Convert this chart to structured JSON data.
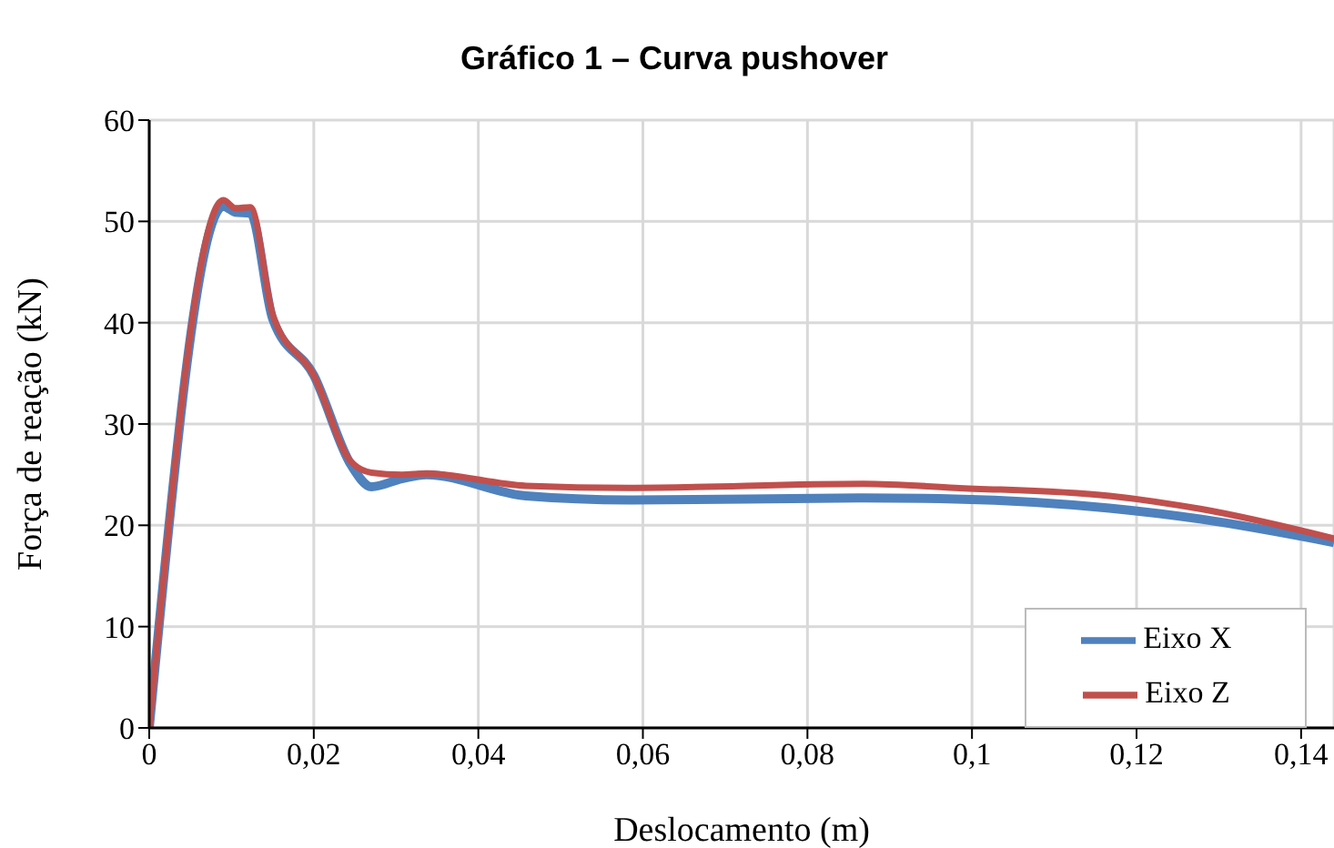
{
  "chart_data": {
    "type": "line",
    "title": "Gráfico 1 – Curva pushover",
    "xlabel": "Deslocamento (m)",
    "ylabel": "Força de reação (kN)",
    "xlim": [
      0,
      0.144
    ],
    "xticks": [
      {
        "value": 0,
        "label": "0"
      },
      {
        "value": 0.02,
        "label": "0,02"
      },
      {
        "value": 0.04,
        "label": "0,04"
      },
      {
        "value": 0.06,
        "label": "0,06"
      },
      {
        "value": 0.08,
        "label": "0,08"
      },
      {
        "value": 0.1,
        "label": "0,1"
      },
      {
        "value": 0.12,
        "label": "0,12"
      },
      {
        "value": 0.14,
        "label": "0,14"
      }
    ],
    "ylim": [
      0,
      60
    ],
    "yticks": [
      0,
      10,
      20,
      30,
      40,
      50,
      60
    ],
    "grid": true,
    "legend": "bottom right",
    "marker": "none",
    "line_style": "solid",
    "series": [
      {
        "name": "Eixo X",
        "color": "#4f81bd",
        "x": [
          0,
          0.009,
          0.0105,
          0.0123,
          0.015,
          0.02,
          0.0245,
          0.027,
          0.0307,
          0.0337,
          0.0458,
          0.0583,
          0.0868,
          0.098,
          0.1167,
          0.1279,
          0.144
        ],
        "values": [
          0,
          51.5,
          50.9,
          50.8,
          40.4,
          34.8,
          26,
          23.8,
          24.6,
          25,
          22.9,
          22.5,
          22.7,
          22.6,
          21.7,
          20.6,
          18.3
        ]
      },
      {
        "name": "Eixo Z",
        "color": "#c0504d",
        "x": [
          0,
          0.009,
          0.0105,
          0.0123,
          0.015,
          0.02,
          0.0245,
          0.027,
          0.0307,
          0.0337,
          0.0458,
          0.0583,
          0.0868,
          0.098,
          0.1167,
          0.1279,
          0.144
        ],
        "values": [
          0,
          52.1,
          51.3,
          51.4,
          40.8,
          34.8,
          26.3,
          25.2,
          25,
          25.1,
          23.9,
          23.7,
          24.1,
          23.7,
          22.9,
          21.6,
          18.7
        ]
      }
    ]
  }
}
